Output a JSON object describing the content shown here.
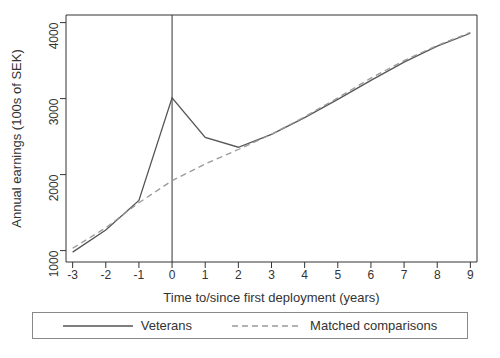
{
  "chart_data": {
    "type": "line",
    "x_label": "Time to/since first deployment (years)",
    "y_label": "Annual earnings (100s of SEK)",
    "x": [
      -3,
      -2,
      -1,
      0,
      1,
      2,
      3,
      4,
      5,
      6,
      7,
      8,
      9
    ],
    "series": [
      {
        "name": "Veterans",
        "color": "#555555",
        "line_style": "solid",
        "values": [
          980,
          1270,
          1660,
          3010,
          2490,
          2360,
          2530,
          2750,
          2990,
          3240,
          3480,
          3690,
          3860
        ]
      },
      {
        "name": "Matched comparisons",
        "color": "#9a9a9a",
        "line_style": "dashed",
        "values": [
          1030,
          1300,
          1630,
          1920,
          2140,
          2330,
          2530,
          2760,
          3010,
          3270,
          3500,
          3700,
          3870
        ]
      }
    ],
    "xlim": [
      -3.2,
      9.2
    ],
    "xticks": [
      -3,
      -2,
      -1,
      0,
      1,
      2,
      3,
      4,
      5,
      6,
      7,
      8,
      9
    ],
    "ylim": [
      850,
      4100
    ],
    "yticks": [
      1000,
      2000,
      3000,
      4000
    ],
    "reference_x": 0,
    "grid": false,
    "legend": "bottom"
  }
}
